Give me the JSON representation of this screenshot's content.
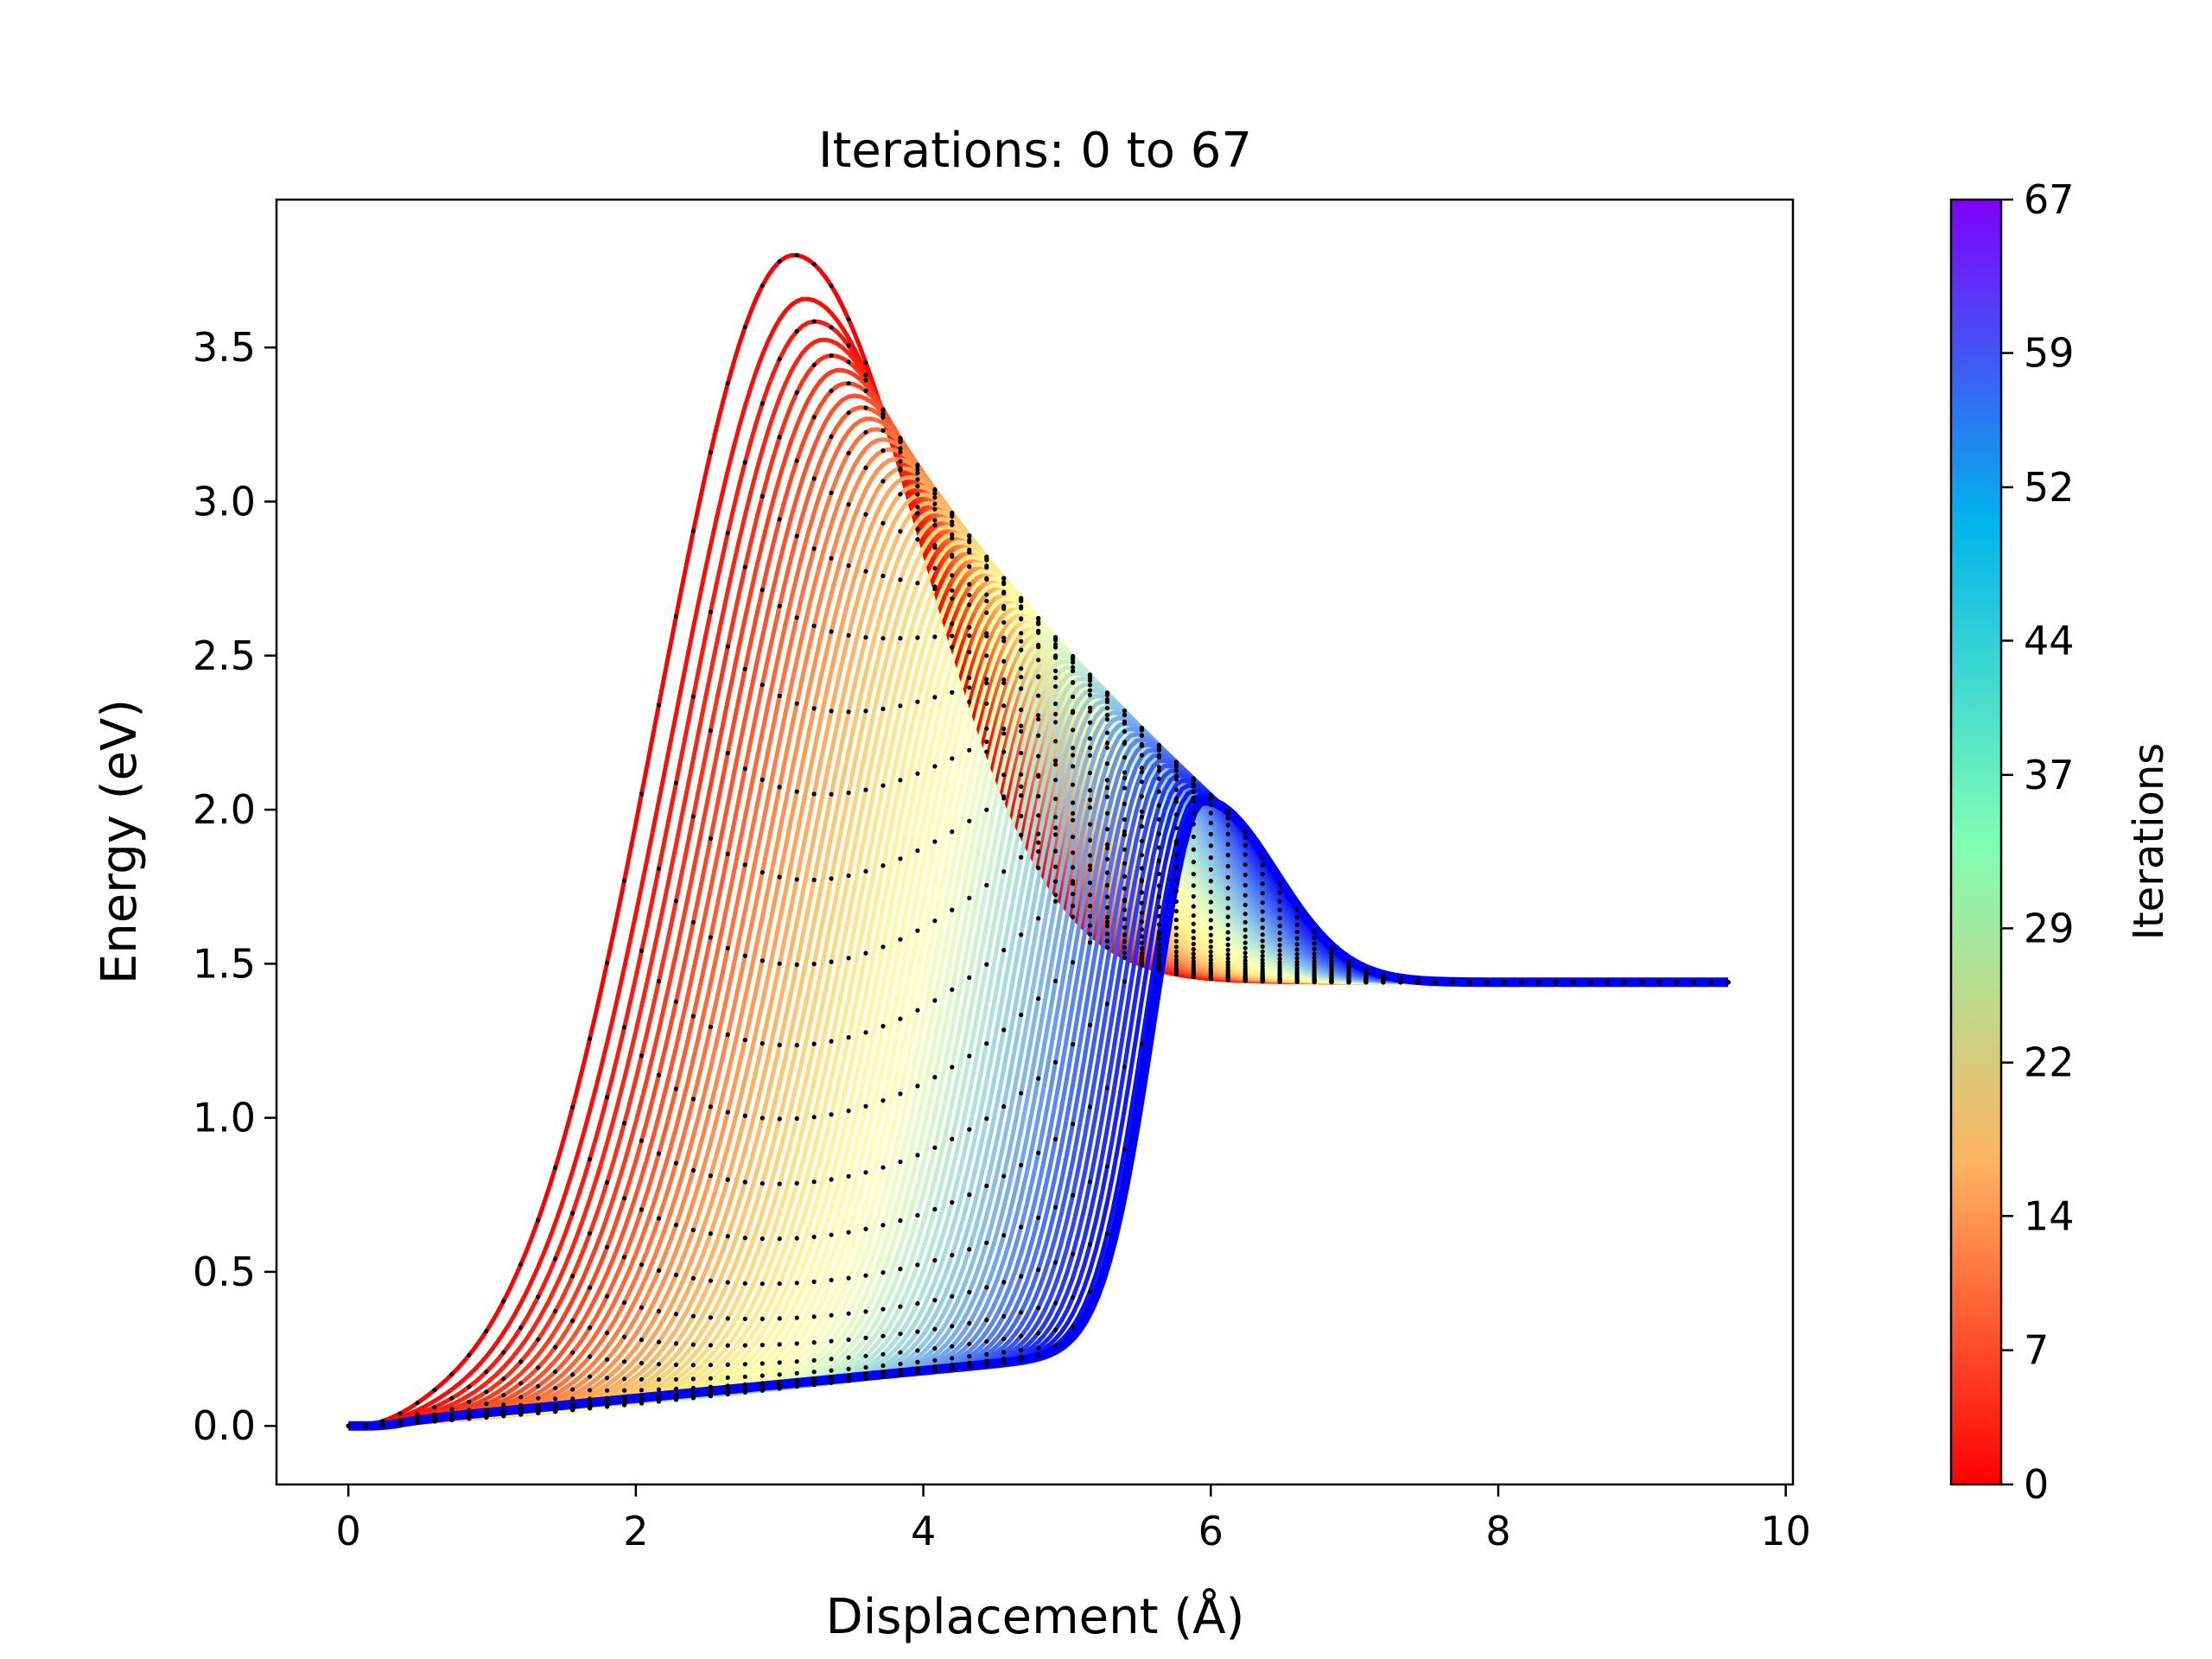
{
  "chart_data": {
    "type": "line",
    "title": "Iterations: 0 to 67",
    "xlabel": "Displacement (Å)",
    "ylabel": "Energy (eV)",
    "xlim": [
      -0.5,
      10.05
    ],
    "ylim": [
      -0.19,
      3.98
    ],
    "xticks": [
      0,
      2,
      4,
      6,
      8,
      10
    ],
    "xtick_labels": [
      "0",
      "2",
      "4",
      "6",
      "8",
      "10"
    ],
    "yticks": [
      0.0,
      0.5,
      1.0,
      1.5,
      2.0,
      2.5,
      3.0,
      3.5
    ],
    "ytick_labels": [
      "0.0",
      "0.5",
      "1.0",
      "1.5",
      "2.0",
      "2.5",
      "3.0",
      "3.5"
    ],
    "grid": false,
    "colorbar": {
      "label": "Iterations",
      "colormap": "rainbow_r",
      "range": [
        0,
        67
      ],
      "ticks": [
        0,
        7,
        14,
        22,
        29,
        37,
        44,
        52,
        59,
        67
      ],
      "tick_labels": [
        "0",
        "7",
        "14",
        "22",
        "29",
        "37",
        "44",
        "52",
        "59",
        "67"
      ]
    },
    "series_summary": {
      "iterations": 68,
      "start_displacement": 0.0,
      "end_displacement": 9.6,
      "start_energy": 0.0,
      "end_energy": 1.44,
      "iteration_0_barrier": {
        "x": 3.1,
        "y": 3.8
      },
      "iteration_67_barrier": {
        "x": 5.95,
        "y": 2.03
      },
      "iteration_67_shoulder": {
        "x": 4.1,
        "y": 0.25
      }
    },
    "marker_color": "#000000"
  }
}
